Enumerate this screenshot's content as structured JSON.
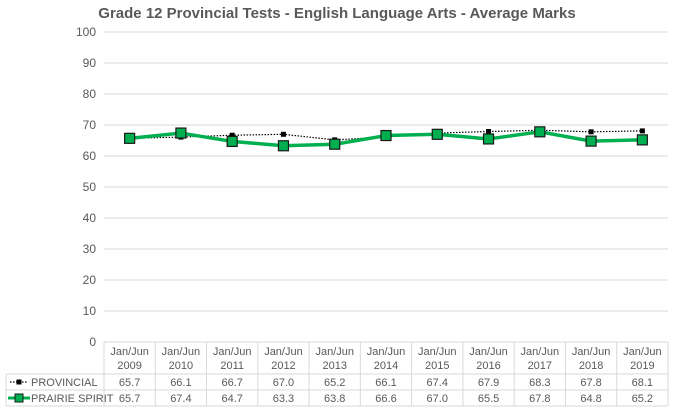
{
  "chart_data": {
    "type": "line",
    "title": "Grade 12 Provincial Tests - English Language Arts - Average Marks",
    "categories": [
      [
        "Jan/Jun",
        "2009"
      ],
      [
        "Jan/Jun",
        "2010"
      ],
      [
        "Jan/Jun",
        "2011"
      ],
      [
        "Jan/Jun",
        "2012"
      ],
      [
        "Jan/Jun",
        "2013"
      ],
      [
        "Jan/Jun",
        "2014"
      ],
      [
        "Jan/Jun",
        "2015"
      ],
      [
        "Jan/Jun",
        "2016"
      ],
      [
        "Jan/Jun",
        "2017"
      ],
      [
        "Jan/Jun",
        "2018"
      ],
      [
        "Jan/Jun",
        "2019"
      ]
    ],
    "ylim": [
      0,
      100
    ],
    "yticks": [
      0,
      10,
      20,
      30,
      40,
      50,
      60,
      70,
      80,
      90,
      100
    ],
    "grid": true,
    "legend": "data-table-left",
    "series": [
      {
        "name": "PROVINCIAL",
        "color": "#000000",
        "style": "dotted",
        "marker": "square-small",
        "values": [
          65.7,
          66.1,
          66.7,
          67.0,
          65.2,
          66.1,
          67.4,
          67.9,
          68.3,
          67.8,
          68.1
        ]
      },
      {
        "name": "PRAIRIE SPIRIT",
        "color": "#00b050",
        "style": "solid",
        "marker": "square-large",
        "values": [
          65.7,
          67.4,
          64.7,
          63.3,
          63.8,
          66.6,
          67.0,
          65.5,
          67.8,
          64.8,
          65.2
        ]
      }
    ],
    "table_values": [
      [
        "65.7",
        "66.1",
        "66.7",
        "67.0",
        "65.2",
        "66.1",
        "67.4",
        "67.9",
        "68.3",
        "67.8",
        "68.1"
      ],
      [
        "65.7",
        "67.4",
        "64.7",
        "63.3",
        "63.8",
        "66.6",
        "67.0",
        "65.5",
        "67.8",
        "64.8",
        "65.2"
      ]
    ]
  }
}
